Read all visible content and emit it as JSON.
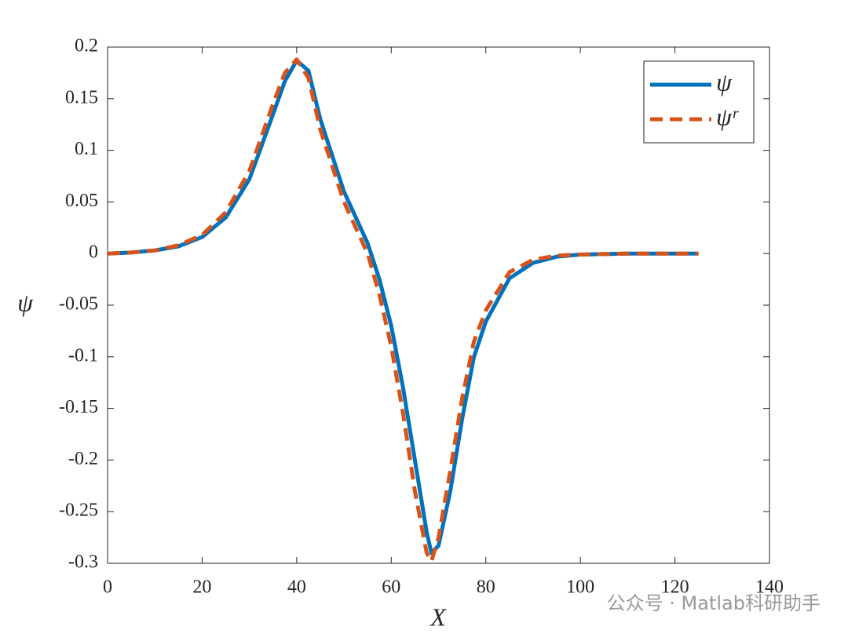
{
  "chart_data": {
    "type": "line",
    "xlabel": "X",
    "ylabel": "ψ",
    "watermark": "公众号 · Matlab科研助手",
    "x": [
      0,
      5,
      10,
      15,
      20,
      25,
      30,
      35,
      37.5,
      40,
      42.5,
      45,
      47.5,
      50,
      52.5,
      55,
      57.5,
      60,
      62.5,
      65,
      67.5,
      68.5,
      70,
      72.5,
      75,
      77.5,
      80,
      85,
      90,
      95,
      100,
      110,
      125
    ],
    "series": [
      {
        "name": "ψ",
        "color": "#0072bd",
        "dash": false,
        "values": [
          0,
          0.001,
          0.003,
          0.007,
          0.016,
          0.035,
          0.072,
          0.135,
          0.167,
          0.187,
          0.177,
          0.13,
          0.095,
          0.06,
          0.035,
          0.01,
          -0.025,
          -0.07,
          -0.13,
          -0.2,
          -0.27,
          -0.29,
          -0.283,
          -0.23,
          -0.16,
          -0.1,
          -0.066,
          -0.024,
          -0.009,
          -0.003,
          -0.001,
          0,
          0
        ]
      },
      {
        "name": "ψʳ",
        "color": "#d95319",
        "dash": true,
        "values": [
          0,
          0.001,
          0.003,
          0.008,
          0.018,
          0.04,
          0.08,
          0.145,
          0.175,
          0.188,
          0.17,
          0.12,
          0.085,
          0.05,
          0.025,
          0,
          -0.04,
          -0.09,
          -0.155,
          -0.23,
          -0.29,
          -0.298,
          -0.275,
          -0.21,
          -0.14,
          -0.085,
          -0.055,
          -0.018,
          -0.006,
          -0.002,
          -0.001,
          0,
          0
        ]
      }
    ],
    "xlim": [
      0,
      140
    ],
    "xticks": [
      0,
      20,
      40,
      60,
      80,
      100,
      120,
      140
    ],
    "ylim": [
      -0.3,
      0.2
    ],
    "yticks": [
      -0.3,
      -0.25,
      -0.2,
      -0.15,
      -0.1,
      -0.05,
      0,
      0.05,
      0.1,
      0.15,
      0.2
    ],
    "grid": false,
    "legend": "northeast"
  }
}
